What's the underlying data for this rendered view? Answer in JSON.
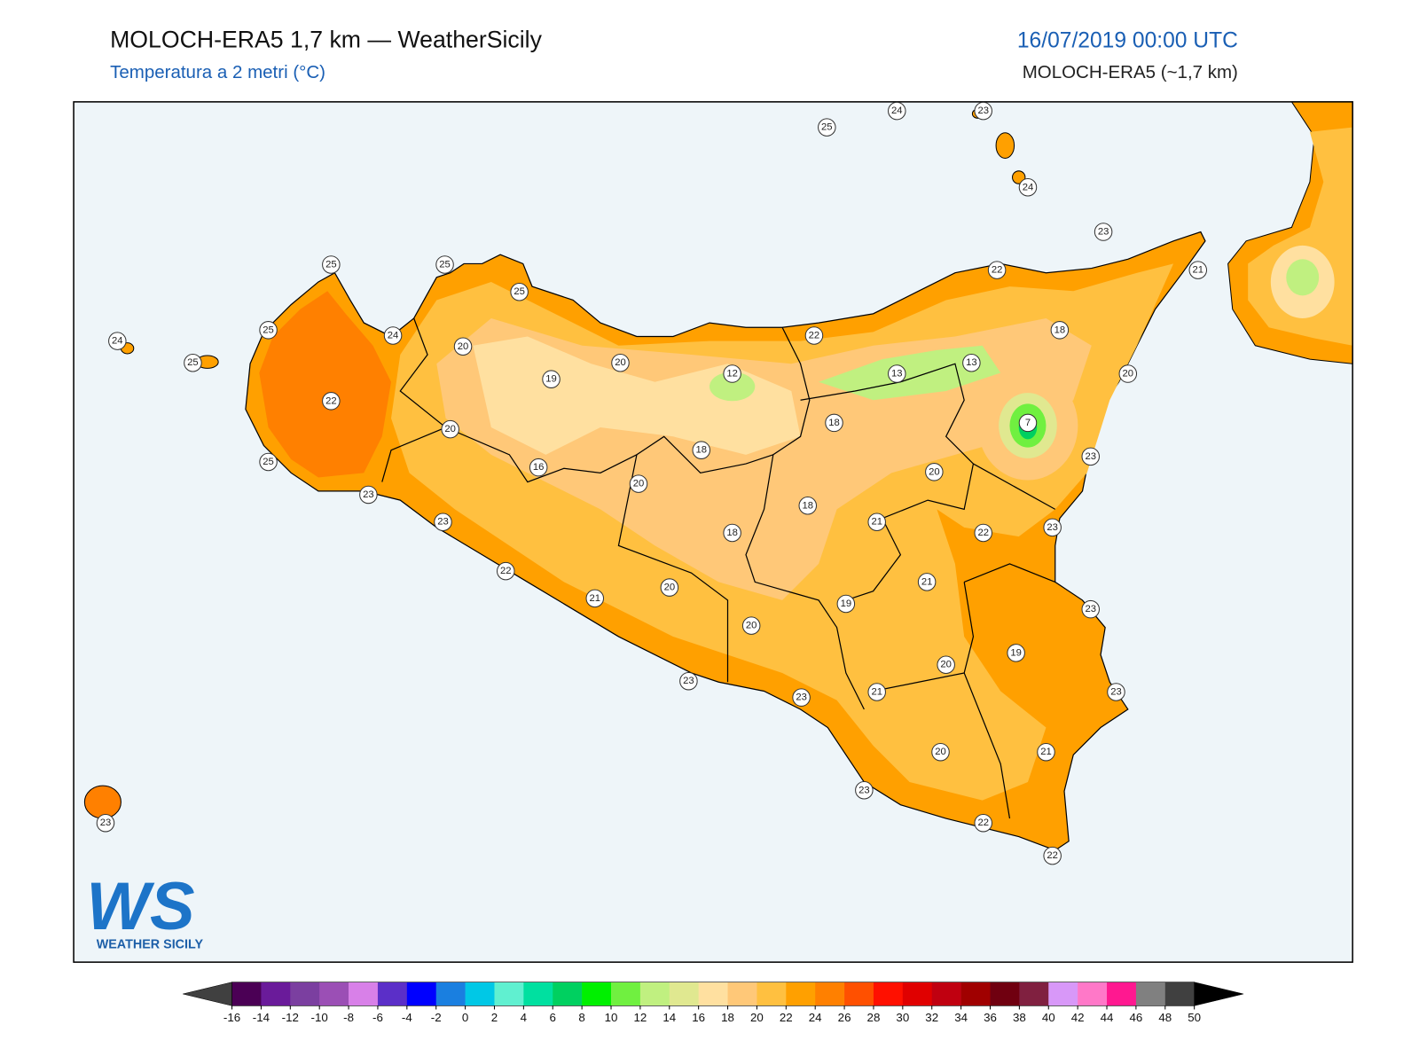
{
  "header": {
    "title": "MOLOCH-ERA5 1,7 km — WeatherSicily",
    "subtitle": "Temperatura a 2 metri (°C)",
    "date": "16/07/2019 00:00 UTC",
    "model": "MOLOCH-ERA5 (~1,7 km)"
  },
  "map": {
    "stations": [
      25,
      24,
      23,
      24,
      23,
      21,
      22,
      18,
      20,
      13,
      13,
      7,
      23,
      20,
      23,
      22,
      21,
      21,
      23,
      19,
      23,
      20,
      21,
      21,
      20,
      23,
      22,
      22,
      23,
      23,
      20,
      19,
      20,
      21,
      22,
      23,
      23,
      25,
      22,
      20,
      16,
      20,
      18,
      18,
      18,
      18,
      22,
      12,
      20,
      19,
      20,
      24,
      25,
      25,
      25,
      25,
      24,
      25,
      23
    ],
    "sea_color": "#eef5f9"
  },
  "logo": {
    "mark": "WS",
    "text": "WEATHER SICILY"
  },
  "colorbar": {
    "ticks": [
      -16,
      -14,
      -12,
      -10,
      -8,
      -6,
      -4,
      -2,
      0,
      2,
      4,
      6,
      8,
      10,
      12,
      14,
      16,
      18,
      20,
      22,
      24,
      26,
      28,
      30,
      32,
      34,
      36,
      38,
      40,
      42,
      44,
      46,
      48,
      50
    ],
    "colors": [
      "#4b0055",
      "#6a1b9a",
      "#7b3fa0",
      "#9b4fb5",
      "#d880e8",
      "#5b2fc8",
      "#0000ff",
      "#1a7fe0",
      "#00c8e6",
      "#60f0d0",
      "#00e0a0",
      "#00d060",
      "#00f000",
      "#70f040",
      "#c0f080",
      "#e0e890",
      "#ffe0a0",
      "#ffc878",
      "#ffc040",
      "#ffa000",
      "#ff8000",
      "#ff5000",
      "#ff1000",
      "#e00000",
      "#c00010",
      "#a00000",
      "#700010",
      "#802040",
      "#d898f8",
      "#ff78c8",
      "#ff1890",
      "#808080",
      "#404040"
    ],
    "under": "#404040",
    "over": "#000000"
  }
}
